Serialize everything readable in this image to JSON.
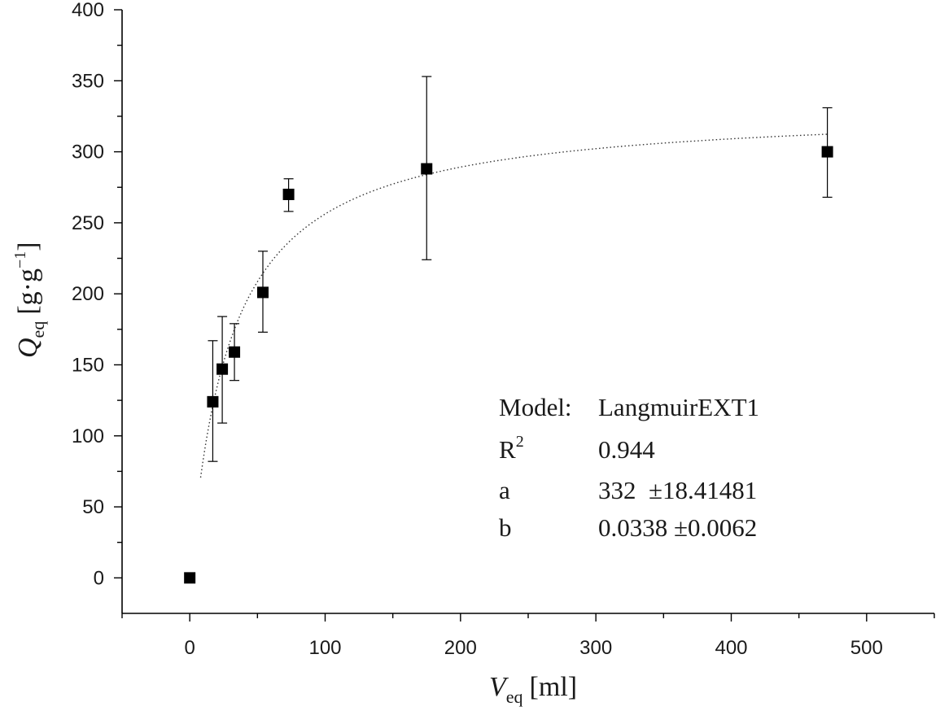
{
  "chart_data": {
    "type": "scatter",
    "x_axis": {
      "label_symbol": "V",
      "label_subscript": "eq",
      "label_unit": "[ml]",
      "range": [
        -50,
        550
      ],
      "ticks": [
        0,
        100,
        200,
        300,
        400,
        500
      ],
      "tick_labels": [
        "0",
        "100",
        "200",
        "300",
        "400",
        "500"
      ],
      "minor_step": 50
    },
    "y_axis": {
      "label_symbol": "Q",
      "label_subscript": "eq",
      "label_unit_prefix": "[g·g",
      "label_unit_superscript": "−1",
      "label_unit_suffix": "]",
      "range": [
        -25,
        400
      ],
      "ticks": [
        0,
        50,
        100,
        150,
        200,
        250,
        300,
        350,
        400
      ],
      "tick_labels": [
        "0",
        "50",
        "100",
        "150",
        "200",
        "250",
        "300",
        "350",
        "400"
      ],
      "minor_step": 25
    },
    "points": [
      {
        "x": 0,
        "y": 0,
        "err_low": null,
        "err_high": null
      },
      {
        "x": 17,
        "y": 124,
        "err_low": 82,
        "err_high": 167
      },
      {
        "x": 24,
        "y": 147,
        "err_low": 109,
        "err_high": 184
      },
      {
        "x": 33,
        "y": 159,
        "err_low": 139,
        "err_high": 179
      },
      {
        "x": 54,
        "y": 201,
        "err_low": 173,
        "err_high": 230
      },
      {
        "x": 73,
        "y": 270,
        "err_low": 258,
        "err_high": 281
      },
      {
        "x": 175,
        "y": 288,
        "err_low": 224,
        "err_high": 353
      },
      {
        "x": 471,
        "y": 300,
        "err_low": 268,
        "err_high": 331
      }
    ],
    "fit": {
      "style": "dotted",
      "x_start": 8,
      "x_end": 471,
      "a": 332,
      "b": 0.0338,
      "box": {
        "model_label": "Model:",
        "model_name": "LangmuirEXT1",
        "r2_label": "R",
        "r2_superscript": "2",
        "r2_value": "0.944",
        "a_label": "a",
        "a_value": "332  ±18.41481",
        "b_label": "b",
        "b_value": "0.0338 ±0.0062"
      }
    },
    "marker": "square",
    "color": "#000000",
    "grid": false
  }
}
